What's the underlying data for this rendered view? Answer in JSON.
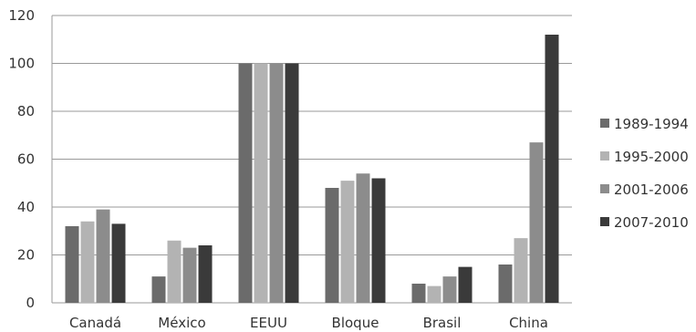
{
  "chart_data": {
    "type": "bar",
    "title": "",
    "xlabel": "",
    "ylabel": "",
    "categories": [
      "Canadá",
      "México",
      "EEUU",
      "Bloque",
      "Brasil",
      "China"
    ],
    "ylim": [
      0,
      120
    ],
    "yticks": [
      0,
      20,
      40,
      60,
      80,
      100,
      120
    ],
    "grid": true,
    "legend_position": "right",
    "series": [
      {
        "name": "1989-1994",
        "color": "#6b6b6b",
        "values": [
          32,
          11,
          100,
          48,
          8,
          16
        ]
      },
      {
        "name": "1995-2000",
        "color": "#b3b3b3",
        "values": [
          34,
          26,
          100,
          51,
          7,
          27
        ]
      },
      {
        "name": "2001-2006",
        "color": "#8c8c8c",
        "values": [
          39,
          23,
          100,
          54,
          11,
          67
        ]
      },
      {
        "name": "2007-2010",
        "color": "#3a3a3a",
        "values": [
          33,
          24,
          100,
          52,
          15,
          112
        ]
      }
    ]
  }
}
